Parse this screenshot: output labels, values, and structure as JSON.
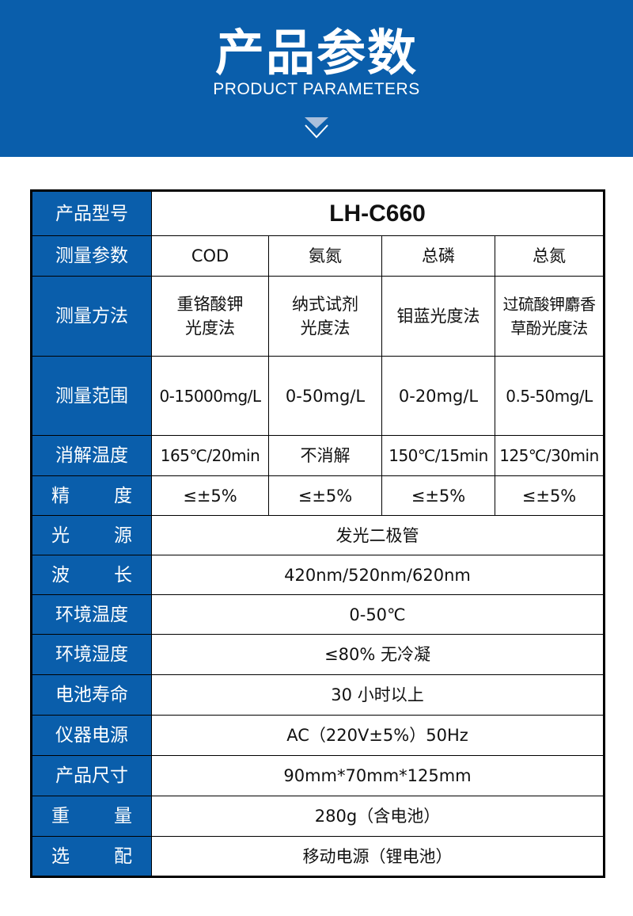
{
  "header": {
    "title": "产品参数",
    "subtitle": "PRODUCT PARAMETERS",
    "icon": "chevron-down-icon",
    "color": "#0a5eab"
  },
  "table": {
    "model": {
      "label": "产品型号",
      "value": "LH-C660"
    },
    "parameters": {
      "label": "测量参数",
      "values": [
        "COD",
        "氨氮",
        "总磷",
        "总氮"
      ]
    },
    "method": {
      "label": "测量方法",
      "values": [
        [
          "重铬酸钾",
          "光度法"
        ],
        [
          "纳式试剂",
          "光度法"
        ],
        [
          "钼蓝光度法"
        ],
        [
          "过硫酸钾麝香",
          "草酚光度法"
        ]
      ]
    },
    "range": {
      "label": "测量范围",
      "values": [
        "0-15000mg/L",
        "0-50mg/L",
        "0-20mg/L",
        "0.5-50mg/L"
      ]
    },
    "digestion": {
      "label": "消解温度",
      "values": [
        "165℃/20min",
        "不消解",
        "150℃/15min",
        "125℃/30min"
      ]
    },
    "accuracy": {
      "label": "精度",
      "values": [
        "≤±5%",
        "≤±5%",
        "≤±5%",
        "≤±5%"
      ]
    },
    "rows": [
      {
        "label": "光源",
        "value": "发光二极管"
      },
      {
        "label": "波长",
        "value": "420nm/520nm/620nm"
      },
      {
        "label": "环境温度",
        "value": "0-50℃"
      },
      {
        "label": "环境湿度",
        "value": "≤80% 无冷凝"
      },
      {
        "label": "电池寿命",
        "value": "30 小时以上"
      },
      {
        "label": "仪器电源",
        "value": "AC（220V±5%）50Hz"
      },
      {
        "label": "产品尺寸",
        "value": "90mm*70mm*125mm"
      },
      {
        "label": "重量",
        "value": "280g（含电池）"
      },
      {
        "label": "选配",
        "value": "移动电源（锂电池）"
      }
    ]
  }
}
